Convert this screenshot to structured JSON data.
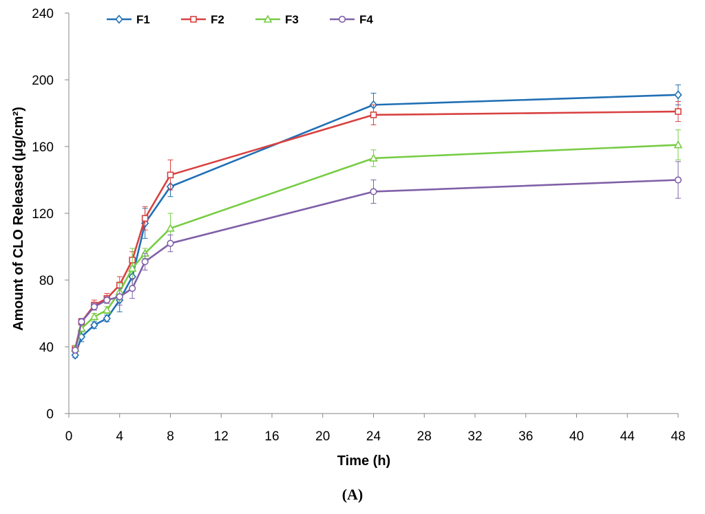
{
  "chart_data": {
    "type": "line",
    "title": "",
    "xlabel": "Time (h)",
    "ylabel": "Amount of CLO Released (μg/cm²)",
    "x_axis_values": [
      0,
      4,
      8,
      12,
      16,
      20,
      24,
      28,
      32,
      36,
      40,
      44,
      48
    ],
    "x_tick_labels": [
      "0",
      "4",
      "8",
      "12",
      "16",
      "20",
      "24",
      "28",
      "32",
      "36",
      "40",
      "44",
      "48"
    ],
    "y_ticks": [
      0,
      40,
      80,
      120,
      160,
      200,
      240
    ],
    "y_tick_labels": [
      "0",
      "40",
      "80",
      "120",
      "160",
      "200",
      "240"
    ],
    "ylim": [
      0,
      240
    ],
    "legend_position": "top-left",
    "x": [
      0.5,
      1,
      2,
      3,
      4,
      5,
      6,
      8,
      24,
      48
    ],
    "series": [
      {
        "name": "F1",
        "color": "#1f6fb5",
        "marker": "diamond",
        "values": [
          35,
          46,
          53,
          57,
          68,
          82,
          114,
          136,
          185,
          191
        ],
        "errors": [
          1.5,
          3,
          2,
          2,
          7,
          6,
          9,
          6,
          7,
          6
        ]
      },
      {
        "name": "F2",
        "color": "#d94040",
        "marker": "square",
        "values": [
          39,
          55,
          65,
          69,
          77,
          92,
          117,
          143,
          179,
          181
        ],
        "errors": [
          1.5,
          2,
          3,
          3,
          5,
          5,
          7,
          9,
          6,
          6
        ]
      },
      {
        "name": "F3",
        "color": "#77cc44",
        "marker": "triangle",
        "values": [
          39,
          51,
          58,
          62,
          73,
          87,
          96,
          111,
          153,
          161
        ],
        "errors": [
          1.5,
          2,
          2,
          2,
          5,
          12,
          3,
          9,
          5,
          9
        ]
      },
      {
        "name": "F4",
        "color": "#8060a8",
        "marker": "circle",
        "values": [
          38,
          55,
          64,
          68,
          70,
          75,
          91,
          102,
          133,
          140
        ],
        "errors": [
          1.5,
          2,
          2,
          2,
          5,
          6,
          5,
          5,
          7,
          11
        ]
      }
    ]
  },
  "caption": "(A)"
}
